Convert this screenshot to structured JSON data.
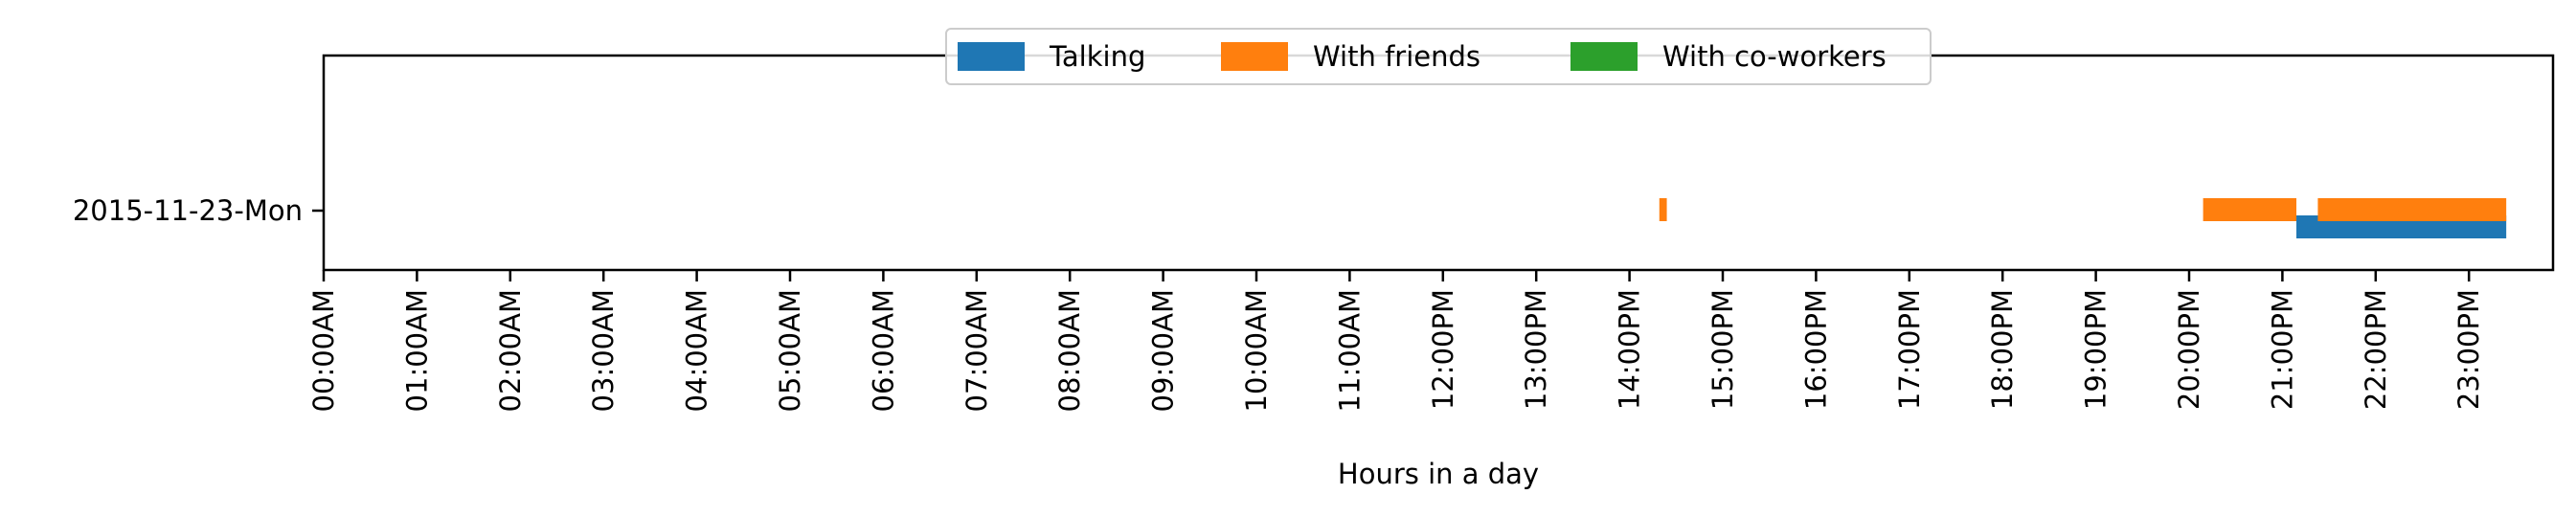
{
  "chart_data": {
    "type": "timeline",
    "title": "",
    "xlabel": "Hours in a day",
    "ylabel": "",
    "xlim": [
      0,
      24
    ],
    "x_ticks": [
      "00:00AM",
      "01:00AM",
      "02:00AM",
      "03:00AM",
      "04:00AM",
      "05:00AM",
      "06:00AM",
      "07:00AM",
      "08:00AM",
      "09:00AM",
      "10:00AM",
      "11:00AM",
      "12:00PM",
      "13:00PM",
      "14:00PM",
      "15:00PM",
      "16:00PM",
      "17:00PM",
      "18:00PM",
      "19:00PM",
      "20:00PM",
      "21:00PM",
      "22:00PM",
      "23:00PM"
    ],
    "categories": [
      "2015-11-23-Mon"
    ],
    "grid": false,
    "legend_position": "top-center",
    "series": [
      {
        "name": "Talking",
        "color": "#1f77b4",
        "lane": "lower",
        "intervals": [
          [
            21.15,
            23.4
          ]
        ]
      },
      {
        "name": "With friends",
        "color": "#ff7f0e",
        "lane": "upper",
        "intervals": [
          [
            14.32,
            14.4
          ],
          [
            20.15,
            21.15
          ],
          [
            21.38,
            23.4
          ]
        ]
      },
      {
        "name": "With co-workers",
        "color": "#2ca02c",
        "lane": "middle",
        "intervals": []
      }
    ]
  }
}
